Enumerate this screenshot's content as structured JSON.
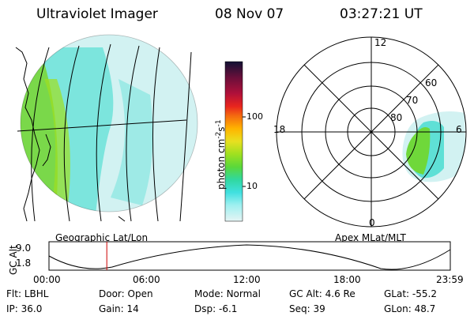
{
  "header": {
    "title": "Ultraviolet Imager",
    "date": "08 Nov 07",
    "time": "03:27:21 UT"
  },
  "geo_panel": {
    "caption": "Geographic Lat/Lon"
  },
  "colorbar": {
    "unit_label": "photon cm",
    "unit_sup1": "-2",
    "unit_mid": "s",
    "unit_sup2": "-1",
    "ticks": [
      "100",
      "10"
    ],
    "colors": [
      "#111133",
      "#6a0f3a",
      "#b0103a",
      "#e8251e",
      "#f46a10",
      "#ffb400",
      "#e8e020",
      "#9fe020",
      "#5ad83a",
      "#30d8a0",
      "#40e0e0",
      "#9ff0f0",
      "#e6f4f4"
    ]
  },
  "polar_panel": {
    "caption": "Apex MLat/MLT",
    "mlt_labels": [
      "12",
      "18",
      "6",
      "0"
    ],
    "mlat_labels": [
      "60",
      "70",
      "80"
    ]
  },
  "altitude_plot": {
    "ylabel": "GC Alt",
    "yticks": [
      "9.0",
      "1.8"
    ],
    "xticks": [
      "00:00",
      "06:00",
      "12:00",
      "18:00",
      "23:59"
    ],
    "current_time_hours": 3.46
  },
  "info": {
    "row1": [
      {
        "label": "Flt:",
        "value": "LBHL"
      },
      {
        "label": "Door:",
        "value": "Open"
      },
      {
        "label": "Mode:",
        "value": "Normal"
      },
      {
        "label": "GC Alt:",
        "value": "4.6 Re"
      },
      {
        "label": "GLat:",
        "value": "-55.2"
      }
    ],
    "row2": [
      {
        "label": "IP:",
        "value": "36.0"
      },
      {
        "label": "Gain:",
        "value": "14"
      },
      {
        "label": "Dsp:",
        "value": "-6.1"
      },
      {
        "label": "Seq:",
        "value": "39"
      },
      {
        "label": "GLon:",
        "value": "48.7"
      }
    ]
  }
}
